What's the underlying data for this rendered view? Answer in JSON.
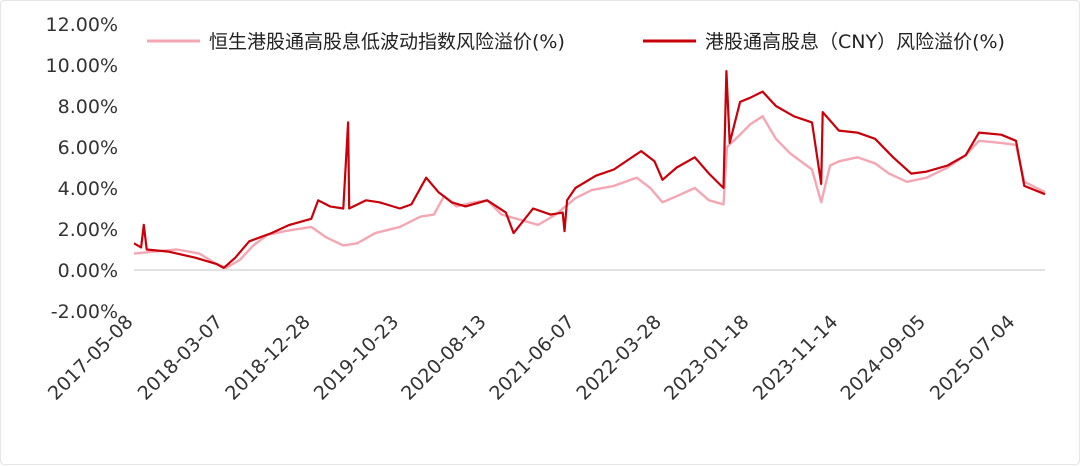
{
  "chart_data": {
    "type": "line",
    "title": "",
    "xlabel": "",
    "ylabel": "",
    "ylim": [
      -0.02,
      0.12
    ],
    "y_ticks": [
      -0.02,
      0.0,
      0.02,
      0.04,
      0.06,
      0.08,
      0.1,
      0.12
    ],
    "y_tick_labels": [
      "-2.00%",
      "0.00%",
      "2.00%",
      "4.00%",
      "6.00%",
      "8.00%",
      "10.00%",
      "12.00%"
    ],
    "x_tick_labels": [
      "2017-05-08",
      "2018-03-07",
      "2018-12-28",
      "2019-10-23",
      "2020-08-13",
      "2021-06-07",
      "2022-03-28",
      "2023-01-18",
      "2023-11-14",
      "2024-09-05",
      "2025-07-04"
    ],
    "xlim": [
      "2017-05-08",
      "2025-10-10"
    ],
    "grid": false,
    "legend_position": "top",
    "series": [
      {
        "name": "恒生港股通高股息低波动指数风险溢价(%)",
        "color": "#f4a6b3",
        "points": [
          [
            "2017-05-08",
            0.008
          ],
          [
            "2017-07-15",
            0.009
          ],
          [
            "2017-10-01",
            0.01
          ],
          [
            "2017-12-15",
            0.008
          ],
          [
            "2018-02-10",
            0.003
          ],
          [
            "2018-03-15",
            0.001
          ],
          [
            "2018-05-01",
            0.005
          ],
          [
            "2018-06-15",
            0.012
          ],
          [
            "2018-08-01",
            0.017
          ],
          [
            "2018-10-01",
            0.019
          ],
          [
            "2018-12-28",
            0.021
          ],
          [
            "2019-02-15",
            0.016
          ],
          [
            "2019-04-15",
            0.012
          ],
          [
            "2019-06-01",
            0.013
          ],
          [
            "2019-08-01",
            0.018
          ],
          [
            "2019-10-23",
            0.021
          ],
          [
            "2019-12-31",
            0.026
          ],
          [
            "2020-02-15",
            0.027
          ],
          [
            "2020-03-20",
            0.036
          ],
          [
            "2020-05-01",
            0.031
          ],
          [
            "2020-07-01",
            0.033
          ],
          [
            "2020-08-13",
            0.034
          ],
          [
            "2020-10-01",
            0.027
          ],
          [
            "2020-12-15",
            0.024
          ],
          [
            "2021-02-01",
            0.022
          ],
          [
            "2021-04-01",
            0.027
          ],
          [
            "2021-06-07",
            0.035
          ],
          [
            "2021-08-01",
            0.039
          ],
          [
            "2021-10-15",
            0.041
          ],
          [
            "2021-12-31",
            0.045
          ],
          [
            "2022-02-15",
            0.04
          ],
          [
            "2022-03-28",
            0.033
          ],
          [
            "2022-05-15",
            0.036
          ],
          [
            "2022-07-15",
            0.04
          ],
          [
            "2022-09-01",
            0.034
          ],
          [
            "2022-10-20",
            0.032
          ],
          [
            "2022-11-01",
            0.06
          ],
          [
            "2022-12-15",
            0.066
          ],
          [
            "2023-01-18",
            0.071
          ],
          [
            "2023-03-01",
            0.075
          ],
          [
            "2023-04-15",
            0.064
          ],
          [
            "2023-06-01",
            0.057
          ],
          [
            "2023-08-15",
            0.049
          ],
          [
            "2023-09-15",
            0.033
          ],
          [
            "2023-10-15",
            0.051
          ],
          [
            "2023-11-14",
            0.053
          ],
          [
            "2024-01-15",
            0.055
          ],
          [
            "2024-03-15",
            0.052
          ],
          [
            "2024-05-01",
            0.047
          ],
          [
            "2024-07-01",
            0.043
          ],
          [
            "2024-09-05",
            0.045
          ],
          [
            "2024-11-15",
            0.05
          ],
          [
            "2025-01-15",
            0.056
          ],
          [
            "2025-03-01",
            0.063
          ],
          [
            "2025-05-15",
            0.062
          ],
          [
            "2025-07-04",
            0.061
          ],
          [
            "2025-08-01",
            0.043
          ],
          [
            "2025-10-10",
            0.038
          ]
        ]
      },
      {
        "name": "港股通高股息（CNY）风险溢价(%)",
        "color": "#c8000a",
        "points": [
          [
            "2017-05-08",
            0.013
          ],
          [
            "2017-06-01",
            0.011
          ],
          [
            "2017-06-10",
            0.022
          ],
          [
            "2017-06-20",
            0.01
          ],
          [
            "2017-09-01",
            0.009
          ],
          [
            "2017-12-01",
            0.006
          ],
          [
            "2018-02-10",
            0.003
          ],
          [
            "2018-03-07",
            0.001
          ],
          [
            "2018-04-15",
            0.006
          ],
          [
            "2018-06-01",
            0.014
          ],
          [
            "2018-08-15",
            0.018
          ],
          [
            "2018-10-15",
            0.022
          ],
          [
            "2018-12-28",
            0.025
          ],
          [
            "2019-01-20",
            0.034
          ],
          [
            "2019-03-01",
            0.031
          ],
          [
            "2019-04-15",
            0.03
          ],
          [
            "2019-05-01",
            0.072
          ],
          [
            "2019-05-05",
            0.03
          ],
          [
            "2019-07-01",
            0.034
          ],
          [
            "2019-08-15",
            0.033
          ],
          [
            "2019-10-23",
            0.03
          ],
          [
            "2019-12-01",
            0.032
          ],
          [
            "2020-01-20",
            0.045
          ],
          [
            "2020-03-01",
            0.038
          ],
          [
            "2020-04-15",
            0.033
          ],
          [
            "2020-06-01",
            0.031
          ],
          [
            "2020-08-13",
            0.034
          ],
          [
            "2020-10-15",
            0.028
          ],
          [
            "2020-11-10",
            0.018
          ],
          [
            "2021-01-15",
            0.03
          ],
          [
            "2021-03-15",
            0.027
          ],
          [
            "2021-04-25",
            0.028
          ],
          [
            "2021-05-01",
            0.019
          ],
          [
            "2021-05-10",
            0.034
          ],
          [
            "2021-06-07",
            0.04
          ],
          [
            "2021-08-15",
            0.046
          ],
          [
            "2021-10-15",
            0.049
          ],
          [
            "2022-01-15",
            0.058
          ],
          [
            "2022-03-01",
            0.053
          ],
          [
            "2022-03-28",
            0.044
          ],
          [
            "2022-05-15",
            0.05
          ],
          [
            "2022-07-15",
            0.055
          ],
          [
            "2022-09-01",
            0.047
          ],
          [
            "2022-10-20",
            0.04
          ],
          [
            "2022-10-30",
            0.097
          ],
          [
            "2022-11-10",
            0.062
          ],
          [
            "2022-12-15",
            0.082
          ],
          [
            "2023-01-18",
            0.084
          ],
          [
            "2023-03-01",
            0.087
          ],
          [
            "2023-04-15",
            0.08
          ],
          [
            "2023-06-15",
            0.075
          ],
          [
            "2023-08-15",
            0.072
          ],
          [
            "2023-09-15",
            0.042
          ],
          [
            "2023-09-20",
            0.077
          ],
          [
            "2023-11-14",
            0.068
          ],
          [
            "2024-01-15",
            0.067
          ],
          [
            "2024-03-15",
            0.064
          ],
          [
            "2024-05-15",
            0.055
          ],
          [
            "2024-07-15",
            0.047
          ],
          [
            "2024-09-05",
            0.048
          ],
          [
            "2024-11-15",
            0.051
          ],
          [
            "2025-01-15",
            0.056
          ],
          [
            "2025-03-01",
            0.067
          ],
          [
            "2025-05-15",
            0.066
          ],
          [
            "2025-07-04",
            0.063
          ],
          [
            "2025-08-01",
            0.041
          ],
          [
            "2025-10-10",
            0.037
          ]
        ]
      }
    ]
  }
}
